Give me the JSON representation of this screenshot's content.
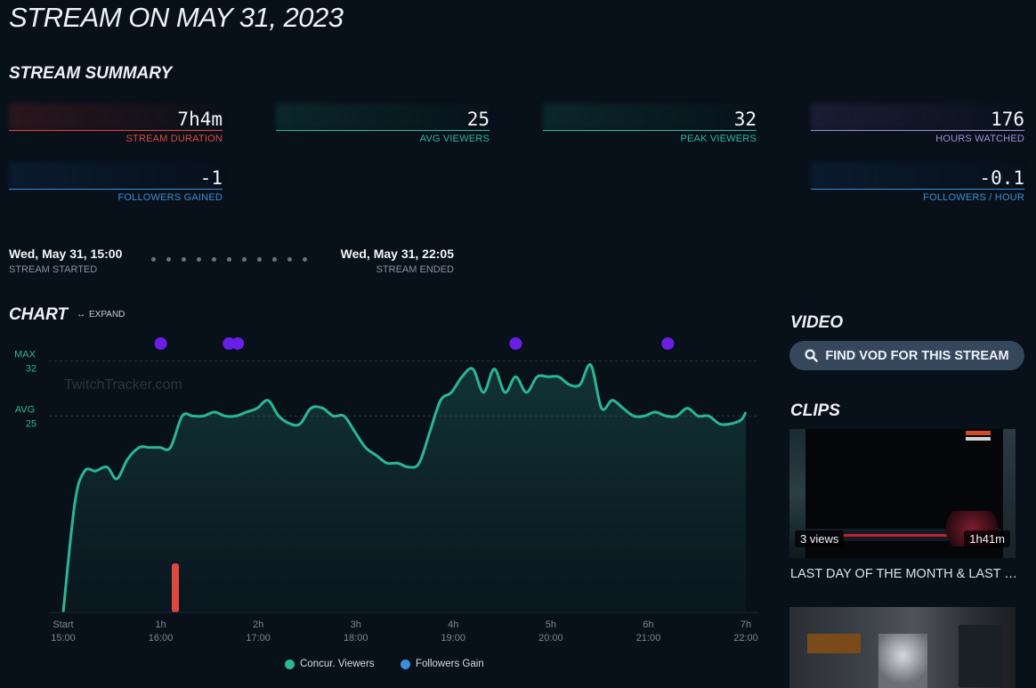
{
  "page": {
    "title": "STREAM ON MAY 31, 2023"
  },
  "summary": {
    "title": "STREAM SUMMARY",
    "stats": [
      {
        "value": "7h4m",
        "label": "STREAM DURATION",
        "color": "#e0483e"
      },
      {
        "value": "25",
        "label": "AVG VIEWERS",
        "color": "#29b99c"
      },
      {
        "value": "32",
        "label": "PEAK VIEWERS",
        "color": "#29b99c"
      },
      {
        "value": "176",
        "label": "HOURS WATCHED",
        "color": "#9a8fd6"
      },
      {
        "value": "-1",
        "label": "FOLLOWERS GAINED",
        "color": "#3a8fd8"
      },
      {
        "value": "-0.1",
        "label": "FOLLOWERS / HOUR",
        "color": "#3a8fd8"
      }
    ]
  },
  "timeline": {
    "start_time": "Wed, May 31, 15:00",
    "start_label": "STREAM STARTED",
    "end_time": "Wed, May 31, 22:05",
    "end_label": "STREAM ENDED"
  },
  "chart_section": {
    "title": "CHART",
    "expand_label": "EXPAND"
  },
  "chart_data": {
    "type": "line",
    "watermark": "TwitchTracker.com",
    "x_ticks": [
      {
        "top": "Start",
        "bottom": "15:00"
      },
      {
        "top": "1h",
        "bottom": "16:00"
      },
      {
        "top": "2h",
        "bottom": "17:00"
      },
      {
        "top": "3h",
        "bottom": "18:00"
      },
      {
        "top": "4h",
        "bottom": "19:00"
      },
      {
        "top": "5h",
        "bottom": "20:00"
      },
      {
        "top": "6h",
        "bottom": "21:00"
      },
      {
        "top": "7h",
        "bottom": "22:00"
      }
    ],
    "xlim_hours": [
      0,
      7
    ],
    "ylim": [
      0,
      34
    ],
    "ref_lines": [
      {
        "label": "MAX",
        "value_label": "32",
        "value": 32
      },
      {
        "label": "AVG",
        "value_label": "25",
        "value": 25
      }
    ],
    "series": [
      {
        "name": "Concur. Viewers",
        "color": "#2bb596",
        "x": [
          0,
          0.12,
          0.22,
          0.33,
          0.45,
          0.55,
          0.66,
          0.78,
          0.88,
          0.99,
          1.1,
          1.22,
          1.33,
          1.44,
          1.55,
          1.66,
          1.77,
          1.88,
          1.99,
          2.1,
          2.21,
          2.33,
          2.43,
          2.54,
          2.66,
          2.77,
          2.88,
          2.99,
          3.1,
          3.21,
          3.32,
          3.43,
          3.54,
          3.65,
          3.76,
          3.87,
          3.98,
          4.09,
          4.2,
          4.31,
          4.42,
          4.53,
          4.64,
          4.75,
          4.86,
          4.97,
          5.08,
          5.19,
          5.3,
          5.41,
          5.52,
          5.63,
          5.74,
          5.85,
          5.96,
          6.07,
          6.18,
          6.29,
          6.4,
          6.51,
          6.62,
          6.73,
          6.84,
          6.95,
          7.0
        ],
        "values": [
          0,
          14,
          18,
          18,
          18.5,
          17,
          19.5,
          21,
          21,
          21,
          21,
          25,
          25,
          25,
          25.5,
          25,
          25,
          25.5,
          26,
          27,
          25,
          24,
          24,
          26,
          26,
          25,
          25,
          23,
          21,
          20,
          19,
          19,
          18.5,
          19,
          23,
          27,
          28,
          30,
          31,
          28,
          31,
          28,
          30,
          28,
          30,
          30,
          30,
          29,
          29,
          31.5,
          26,
          27,
          26,
          25,
          25,
          25.5,
          25,
          25,
          26,
          25,
          25,
          24,
          24,
          24.5,
          25.5
        ]
      },
      {
        "name": "Followers Gain",
        "color": "#3a8fd8",
        "x": [
          1.15
        ],
        "values": [
          -1
        ]
      }
    ],
    "event_markers_hours": [
      1,
      1.7,
      1.79,
      4.64,
      6.2
    ]
  },
  "video": {
    "title": "VIDEO",
    "find_vod_label": "FIND VOD FOR THIS STREAM"
  },
  "clips": {
    "title": "CLIPS",
    "items": [
      {
        "views": "3 views",
        "duration": "1h41m",
        "title": "LAST DAY OF THE MONTH & LAST SUB..."
      },
      {
        "views": "",
        "duration": "",
        "title": ""
      }
    ]
  },
  "legend": [
    {
      "name": "Concur. Viewers",
      "color": "#2bb596"
    },
    {
      "name": "Followers Gain",
      "color": "#3a8fd8"
    }
  ]
}
